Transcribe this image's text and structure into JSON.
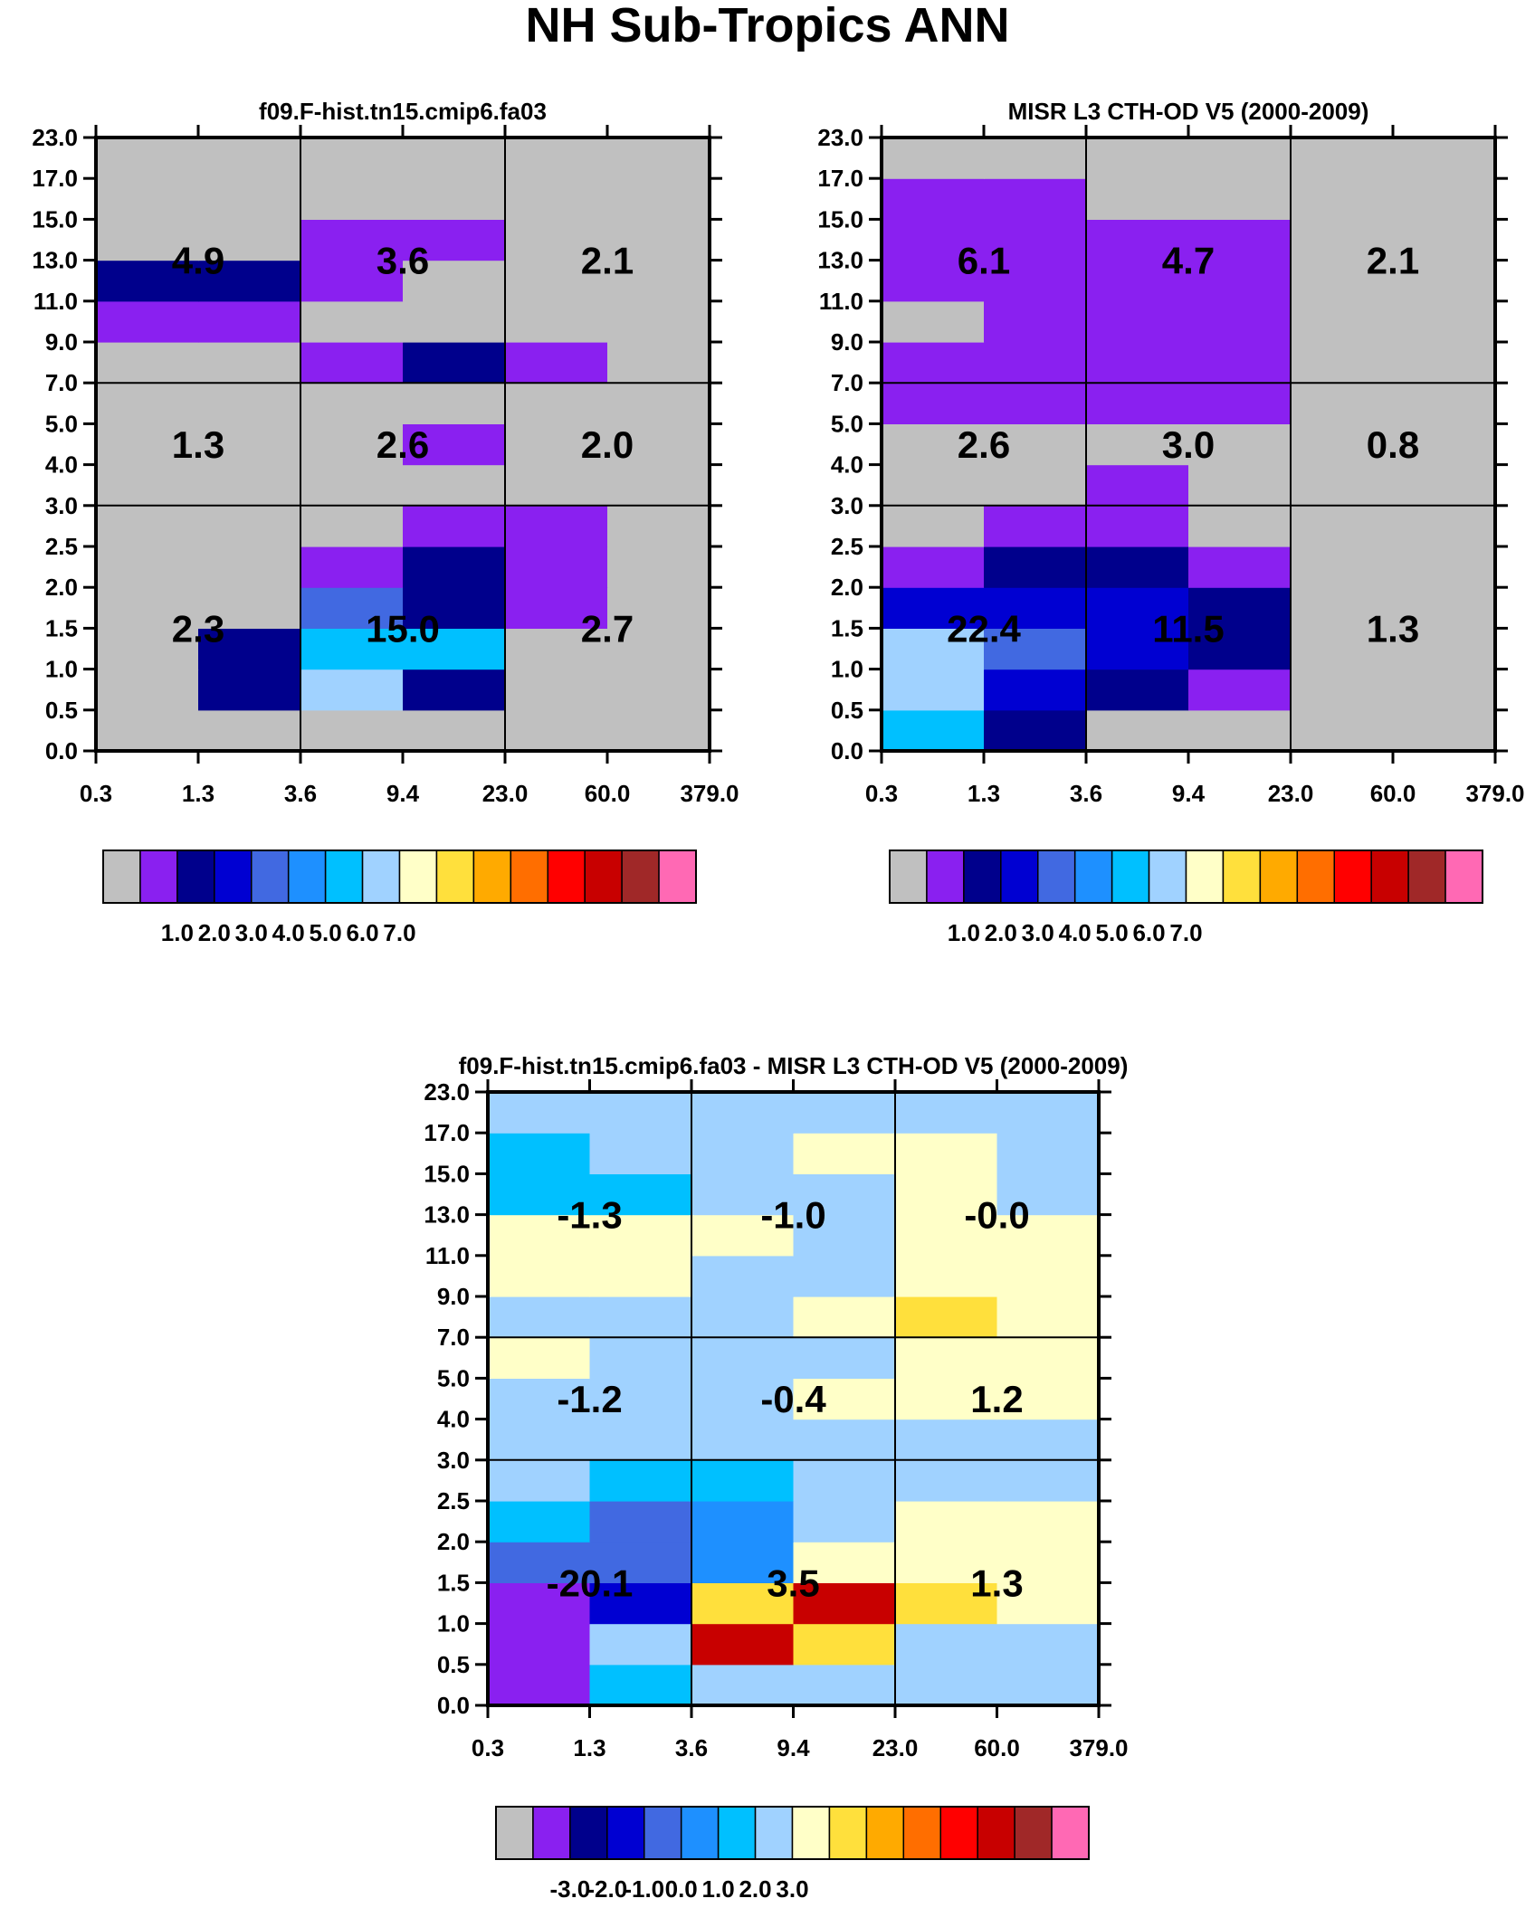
{
  "figure_title": "NH Sub-Tropics ANN",
  "chart_data": [
    {
      "type": "heatmap",
      "title": "f09.F-hist.tn15.cmip6.fa03",
      "xlabel": "",
      "ylabel": "",
      "x_ticks": [
        "0.3",
        "1.3",
        "3.6",
        "9.4",
        "23.0",
        "60.0",
        "379.0"
      ],
      "y_ticks": [
        "0.0",
        "0.5",
        "1.0",
        "1.5",
        "2.0",
        "2.5",
        "3.0",
        "4.0",
        "5.0",
        "7.0",
        "9.0",
        "11.0",
        "13.0",
        "15.0",
        "17.0",
        "23.0"
      ],
      "cells": [
        [
          0,
          0,
          0,
          0,
          0,
          0
        ],
        [
          0,
          2,
          7,
          2,
          0,
          0
        ],
        [
          0,
          2,
          6,
          6,
          0,
          0
        ],
        [
          0,
          0,
          4,
          2,
          1,
          0
        ],
        [
          0,
          0,
          1,
          2,
          1,
          0
        ],
        [
          0,
          0,
          0,
          1,
          1,
          0
        ],
        [
          0,
          0,
          0,
          0,
          0,
          0
        ],
        [
          0,
          0,
          0,
          1,
          0,
          0
        ],
        [
          0,
          0,
          0,
          0,
          0,
          0
        ],
        [
          0,
          0,
          1,
          2,
          1,
          0
        ],
        [
          1,
          1,
          0,
          0,
          0,
          0
        ],
        [
          2,
          2,
          1,
          0,
          0,
          0
        ],
        [
          0,
          0,
          1,
          1,
          0,
          0
        ],
        [
          0,
          0,
          0,
          0,
          0,
          0
        ],
        [
          0,
          0,
          0,
          0,
          0,
          0
        ]
      ],
      "group_values": [
        [
          "2.3",
          "15.0",
          "2.7"
        ],
        [
          "1.3",
          "2.6",
          "2.0"
        ],
        [
          "4.9",
          "3.6",
          "2.1"
        ]
      ],
      "colorbar": {
        "colors": [
          "#c0c0c0",
          "#8a20f0",
          "#00008c",
          "#0000d2",
          "#4169e1",
          "#1e90ff",
          "#00c0ff",
          "#a0d2ff",
          "#ffffc8",
          "#ffe03c",
          "#ffaa00",
          "#ff6e00",
          "#ff0000",
          "#c80000",
          "#a02828",
          "#ff69b4"
        ],
        "labels": [
          "1.0",
          "2.0",
          "3.0",
          "4.0",
          "5.0",
          "6.0",
          "7.0"
        ]
      }
    },
    {
      "type": "heatmap",
      "title": "MISR L3 CTH-OD V5 (2000-2009)",
      "xlabel": "",
      "ylabel": "",
      "x_ticks": [
        "0.3",
        "1.3",
        "3.6",
        "9.4",
        "23.0",
        "60.0",
        "379.0"
      ],
      "y_ticks": [
        "0.0",
        "0.5",
        "1.0",
        "1.5",
        "2.0",
        "2.5",
        "3.0",
        "4.0",
        "5.0",
        "7.0",
        "9.0",
        "11.0",
        "13.0",
        "15.0",
        "17.0",
        "23.0"
      ],
      "cells": [
        [
          6,
          2,
          0,
          0,
          0,
          0
        ],
        [
          7,
          3,
          2,
          1,
          0,
          0
        ],
        [
          7,
          4,
          3,
          2,
          0,
          0
        ],
        [
          3,
          3,
          3,
          2,
          0,
          0
        ],
        [
          1,
          2,
          2,
          1,
          0,
          0
        ],
        [
          0,
          1,
          1,
          0,
          0,
          0
        ],
        [
          0,
          0,
          1,
          0,
          0,
          0
        ],
        [
          0,
          0,
          0,
          0,
          0,
          0
        ],
        [
          1,
          1,
          1,
          1,
          0,
          0
        ],
        [
          1,
          1,
          1,
          1,
          0,
          0
        ],
        [
          0,
          1,
          1,
          1,
          0,
          0
        ],
        [
          1,
          1,
          1,
          1,
          0,
          0
        ],
        [
          1,
          1,
          1,
          1,
          0,
          0
        ],
        [
          1,
          1,
          0,
          0,
          0,
          0
        ],
        [
          0,
          0,
          0,
          0,
          0,
          0
        ]
      ],
      "group_values": [
        [
          "22.4",
          "11.5",
          "1.3"
        ],
        [
          "2.6",
          "3.0",
          "0.8"
        ],
        [
          "6.1",
          "4.7",
          "2.1"
        ]
      ],
      "colorbar": {
        "colors": [
          "#c0c0c0",
          "#8a20f0",
          "#00008c",
          "#0000d2",
          "#4169e1",
          "#1e90ff",
          "#00c0ff",
          "#a0d2ff",
          "#ffffc8",
          "#ffe03c",
          "#ffaa00",
          "#ff6e00",
          "#ff0000",
          "#c80000",
          "#a02828",
          "#ff69b4"
        ],
        "labels": [
          "1.0",
          "2.0",
          "3.0",
          "4.0",
          "5.0",
          "6.0",
          "7.0"
        ]
      }
    },
    {
      "type": "heatmap",
      "title": "f09.F-hist.tn15.cmip6.fa03 - MISR L3 CTH-OD V5 (2000-2009)",
      "xlabel": "",
      "ylabel": "",
      "x_ticks": [
        "0.3",
        "1.3",
        "3.6",
        "9.4",
        "23.0",
        "60.0",
        "379.0"
      ],
      "y_ticks": [
        "0.0",
        "0.5",
        "1.0",
        "1.5",
        "2.0",
        "2.5",
        "3.0",
        "4.0",
        "5.0",
        "7.0",
        "9.0",
        "11.0",
        "13.0",
        "15.0",
        "17.0",
        "23.0"
      ],
      "cells": [
        [
          1,
          6,
          7,
          7,
          7,
          7
        ],
        [
          1,
          7,
          13,
          9,
          7,
          7
        ],
        [
          1,
          3,
          9,
          13,
          9,
          8
        ],
        [
          4,
          4,
          5,
          8,
          8,
          8
        ],
        [
          6,
          4,
          5,
          7,
          8,
          8
        ],
        [
          7,
          6,
          6,
          7,
          7,
          7
        ],
        [
          7,
          7,
          7,
          7,
          7,
          7
        ],
        [
          7,
          7,
          7,
          8,
          8,
          8
        ],
        [
          8,
          7,
          7,
          7,
          8,
          8
        ],
        [
          7,
          7,
          7,
          8,
          9,
          8
        ],
        [
          8,
          8,
          7,
          7,
          8,
          8
        ],
        [
          8,
          8,
          8,
          7,
          8,
          8
        ],
        [
          6,
          6,
          7,
          7,
          8,
          7
        ],
        [
          6,
          7,
          7,
          8,
          8,
          7
        ],
        [
          7,
          7,
          7,
          7,
          7,
          7
        ]
      ],
      "group_values": [
        [
          "-20.1",
          "3.5",
          "1.3"
        ],
        [
          "-1.2",
          "-0.4",
          "1.2"
        ],
        [
          "-1.3",
          "-1.0",
          "-0.0"
        ]
      ],
      "colorbar": {
        "colors": [
          "#c0c0c0",
          "#8a20f0",
          "#00008c",
          "#0000d2",
          "#4169e1",
          "#1e90ff",
          "#00c0ff",
          "#a0d2ff",
          "#ffffc8",
          "#ffe03c",
          "#ffaa00",
          "#ff6e00",
          "#ff0000",
          "#c80000",
          "#a02828",
          "#ff69b4"
        ],
        "labels": [
          "-3.0",
          "-2.0",
          "-1.0",
          "0.0",
          "1.0",
          "2.0",
          "3.0"
        ]
      }
    }
  ]
}
